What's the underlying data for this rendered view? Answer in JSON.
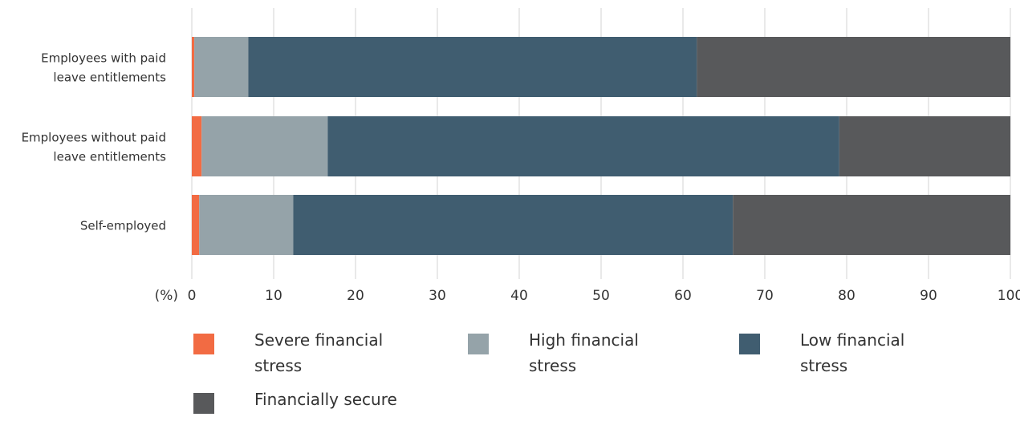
{
  "chart_data": {
    "type": "bar",
    "orientation": "horizontal",
    "stacked": true,
    "categories": [
      "Employees with paid leave entitlements",
      "Employees without paid leave entitlements",
      "Self-employed"
    ],
    "category_lines": [
      [
        "Employees with paid",
        "leave entitlements"
      ],
      [
        "Employees without paid",
        "leave entitlements"
      ],
      [
        "Self-employed"
      ]
    ],
    "series": [
      {
        "name": "Severe financial stress",
        "legend_lines": [
          "Severe financial",
          "stress"
        ],
        "color": "#f26b43",
        "values": [
          0.3,
          1.2,
          0.9
        ]
      },
      {
        "name": "High financial stress",
        "legend_lines": [
          "High financial",
          "stress"
        ],
        "color": "#95a3a9",
        "values": [
          6.6,
          15.4,
          11.5
        ]
      },
      {
        "name": "Low financial stress",
        "legend_lines": [
          "Low financial",
          "stress"
        ],
        "color": "#405d70",
        "values": [
          54.8,
          62.5,
          53.7
        ]
      },
      {
        "name": "Financially secure",
        "legend_lines": [
          "Financially secure"
        ],
        "color": "#58595b",
        "values": [
          38.3,
          20.9,
          33.9
        ]
      }
    ],
    "xlabel": "(%)",
    "xlim": [
      0,
      100
    ],
    "xticks": [
      0,
      10,
      20,
      30,
      40,
      50,
      60,
      70,
      80,
      90,
      100
    ],
    "grid": true,
    "legend_position": "bottom"
  }
}
